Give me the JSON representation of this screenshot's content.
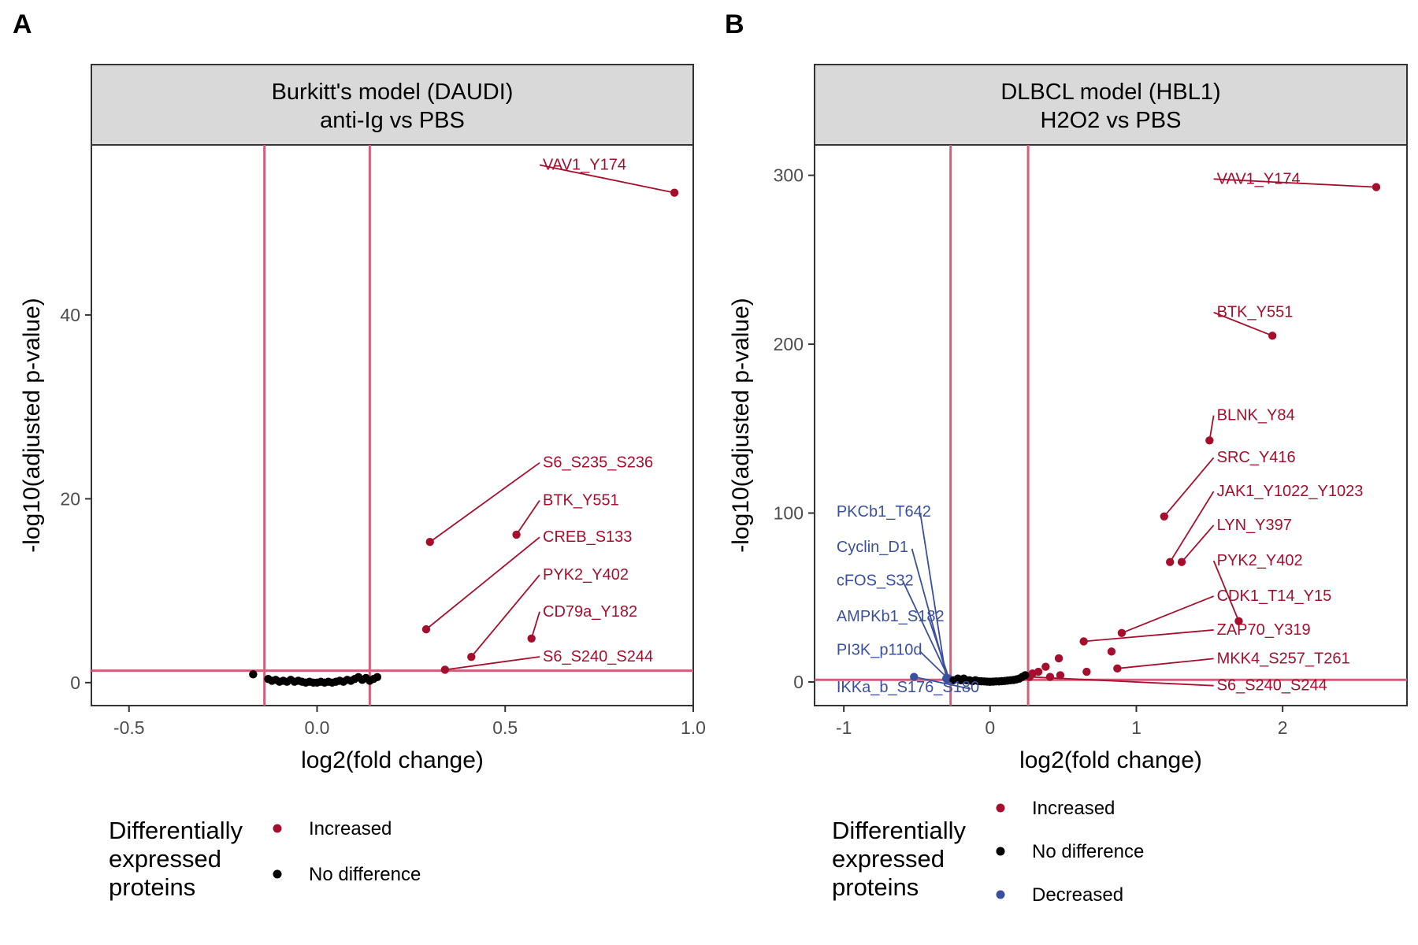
{
  "panel_labels": [
    "A",
    "B"
  ],
  "colors": {
    "increased": "#A50F2D",
    "no_difference": "#000000",
    "decreased": "#3A4F9E",
    "threshold": "#D0607A",
    "strip_fill": "#D9D9D9",
    "axis": "#333333"
  },
  "legend": {
    "title_lines": [
      "Differentially",
      "expressed",
      "proteins"
    ]
  },
  "chart_data": [
    {
      "type": "scatter",
      "strip_title_lines": [
        "Burkitt's model (DAUDI)",
        "anti-Ig vs PBS"
      ],
      "xlabel": "log2(fold change)",
      "ylabel": "-log10(adjusted p-value)",
      "xlim": [
        -0.6,
        1.0
      ],
      "ylim": [
        -2.5,
        58.5
      ],
      "x_ticks": [
        -0.5,
        0.0,
        0.5,
        1.0
      ],
      "x_tick_labels": [
        "-0.5",
        "0.0",
        "0.5",
        "1.0"
      ],
      "y_ticks": [
        0,
        20,
        40
      ],
      "y_tick_labels": [
        "0",
        "20",
        "40"
      ],
      "thresholds": {
        "vertical": [
          -0.14,
          0.14
        ],
        "horizontal": 1.3
      },
      "legend_items": [
        {
          "key": "increased",
          "label": "Increased"
        },
        {
          "key": "no_difference",
          "label": "No difference"
        }
      ],
      "points": [
        {
          "x": 0.95,
          "y": 53.3,
          "class": "increased",
          "label": "VAV1_Y174",
          "lx": 0.6,
          "ly": 55.8
        },
        {
          "x": 0.3,
          "y": 15.3,
          "class": "increased",
          "label": "S6_S235_S236",
          "lx": 0.6,
          "ly": 23.4
        },
        {
          "x": 0.53,
          "y": 16.1,
          "class": "increased",
          "label": "BTK_Y551",
          "lx": 0.6,
          "ly": 19.3
        },
        {
          "x": 0.29,
          "y": 5.8,
          "class": "increased",
          "label": "CREB_S133",
          "lx": 0.6,
          "ly": 15.3
        },
        {
          "x": 0.41,
          "y": 2.8,
          "class": "increased",
          "label": "PYK2_Y402",
          "lx": 0.6,
          "ly": 11.2
        },
        {
          "x": 0.57,
          "y": 4.8,
          "class": "increased",
          "label": "CD79a_Y182",
          "lx": 0.6,
          "ly": 7.2
        },
        {
          "x": 0.34,
          "y": 1.4,
          "class": "increased",
          "label": "S6_S240_S244",
          "lx": 0.6,
          "ly": 2.3
        },
        {
          "x": -0.17,
          "y": 0.9,
          "class": "no_difference"
        },
        {
          "x": -0.13,
          "y": 0.4,
          "class": "no_difference"
        },
        {
          "x": -0.12,
          "y": 0.2,
          "class": "no_difference"
        },
        {
          "x": -0.11,
          "y": 0.3,
          "class": "no_difference"
        },
        {
          "x": -0.1,
          "y": 0.1,
          "class": "no_difference"
        },
        {
          "x": -0.09,
          "y": 0.2,
          "class": "no_difference"
        },
        {
          "x": -0.08,
          "y": 0.1,
          "class": "no_difference"
        },
        {
          "x": -0.07,
          "y": 0.3,
          "class": "no_difference"
        },
        {
          "x": -0.06,
          "y": 0.1,
          "class": "no_difference"
        },
        {
          "x": -0.05,
          "y": 0.2,
          "class": "no_difference"
        },
        {
          "x": -0.04,
          "y": 0.1,
          "class": "no_difference"
        },
        {
          "x": -0.03,
          "y": 0.0,
          "class": "no_difference"
        },
        {
          "x": -0.02,
          "y": 0.1,
          "class": "no_difference"
        },
        {
          "x": -0.01,
          "y": 0.0,
          "class": "no_difference"
        },
        {
          "x": 0.0,
          "y": 0.0,
          "class": "no_difference"
        },
        {
          "x": 0.01,
          "y": 0.1,
          "class": "no_difference"
        },
        {
          "x": 0.02,
          "y": 0.0,
          "class": "no_difference"
        },
        {
          "x": 0.03,
          "y": 0.1,
          "class": "no_difference"
        },
        {
          "x": 0.04,
          "y": 0.0,
          "class": "no_difference"
        },
        {
          "x": 0.05,
          "y": 0.1,
          "class": "no_difference"
        },
        {
          "x": 0.06,
          "y": 0.2,
          "class": "no_difference"
        },
        {
          "x": 0.07,
          "y": 0.1,
          "class": "no_difference"
        },
        {
          "x": 0.08,
          "y": 0.3,
          "class": "no_difference"
        },
        {
          "x": 0.09,
          "y": 0.2,
          "class": "no_difference"
        },
        {
          "x": 0.1,
          "y": 0.4,
          "class": "no_difference"
        },
        {
          "x": 0.11,
          "y": 0.6,
          "class": "no_difference"
        },
        {
          "x": 0.12,
          "y": 0.3,
          "class": "no_difference"
        },
        {
          "x": 0.13,
          "y": 0.5,
          "class": "no_difference"
        },
        {
          "x": 0.14,
          "y": 0.2,
          "class": "no_difference"
        },
        {
          "x": 0.15,
          "y": 0.4,
          "class": "no_difference"
        },
        {
          "x": 0.16,
          "y": 0.6,
          "class": "no_difference"
        }
      ]
    },
    {
      "type": "scatter",
      "strip_title_lines": [
        "DLBCL model (HBL1)",
        "H2O2 vs PBS"
      ],
      "xlabel": "log2(fold change)",
      "ylabel": "-log10(adjusted p-value)",
      "xlim": [
        -1.2,
        2.85
      ],
      "ylim": [
        -14,
        318
      ],
      "x_ticks": [
        -1,
        0,
        1,
        2
      ],
      "x_tick_labels": [
        "-1",
        "0",
        "1",
        "2"
      ],
      "y_ticks": [
        0,
        100,
        200,
        300
      ],
      "y_tick_labels": [
        "0",
        "100",
        "200",
        "300"
      ],
      "thresholds": {
        "vertical": [
          -0.27,
          0.26
        ],
        "horizontal": 1.3
      },
      "legend_items": [
        {
          "key": "increased",
          "label": "Increased"
        },
        {
          "key": "no_difference",
          "label": "No difference"
        },
        {
          "key": "decreased",
          "label": "Decreased"
        }
      ],
      "points": [
        {
          "x": 2.64,
          "y": 293,
          "class": "increased",
          "label": "VAV1_Y174",
          "lx": 1.55,
          "ly": 295
        },
        {
          "x": 1.93,
          "y": 205,
          "class": "increased",
          "label": "BTK_Y551",
          "lx": 1.55,
          "ly": 216
        },
        {
          "x": 1.5,
          "y": 143,
          "class": "increased",
          "label": "BLNK_Y84",
          "lx": 1.55,
          "ly": 155
        },
        {
          "x": 1.19,
          "y": 98,
          "class": "increased",
          "label": "SRC_Y416",
          "lx": 1.55,
          "ly": 130
        },
        {
          "x": 1.23,
          "y": 71,
          "class": "increased",
          "label": "JAK1_Y1022_Y1023",
          "lx": 1.55,
          "ly": 110
        },
        {
          "x": 1.31,
          "y": 71,
          "class": "increased",
          "label": "LYN_Y397",
          "lx": 1.55,
          "ly": 90
        },
        {
          "x": 1.7,
          "y": 36,
          "class": "increased",
          "label": "PYK2_Y402",
          "lx": 1.55,
          "ly": 69
        },
        {
          "x": 0.9,
          "y": 29,
          "class": "increased",
          "label": "CDK1_T14_Y15",
          "lx": 1.55,
          "ly": 48
        },
        {
          "x": 0.64,
          "y": 24,
          "class": "increased",
          "label": "ZAP70_Y319",
          "lx": 1.55,
          "ly": 28
        },
        {
          "x": 0.87,
          "y": 8,
          "class": "increased",
          "label": "MKK4_S257_T261",
          "lx": 1.55,
          "ly": 11
        },
        {
          "x": 0.27,
          "y": 3,
          "class": "increased",
          "label": "S6_S240_S244",
          "lx": 1.55,
          "ly": -5
        },
        {
          "x": 0.83,
          "y": 18,
          "class": "increased"
        },
        {
          "x": 0.47,
          "y": 14,
          "class": "increased"
        },
        {
          "x": 0.38,
          "y": 9,
          "class": "increased"
        },
        {
          "x": 0.33,
          "y": 6,
          "class": "increased"
        },
        {
          "x": 0.29,
          "y": 5,
          "class": "increased"
        },
        {
          "x": 0.41,
          "y": 3,
          "class": "increased"
        },
        {
          "x": 0.48,
          "y": 4,
          "class": "increased"
        },
        {
          "x": 0.66,
          "y": 6,
          "class": "increased"
        },
        {
          "x": -0.52,
          "y": 3,
          "class": "decreased",
          "label": "IKKa_b_S176_S180",
          "lx": -1.05,
          "ly": -6
        },
        {
          "x": -0.3,
          "y": 2,
          "class": "decreased",
          "label": "PKCb1_T642",
          "lx": -1.05,
          "ly": 98
        },
        {
          "x": -0.29,
          "y": 1.5,
          "class": "decreased",
          "label": "Cyclin_D1",
          "lx": -1.05,
          "ly": 77
        },
        {
          "x": -0.28,
          "y": 1.6,
          "class": "decreased",
          "label": "cFOS_S32",
          "lx": -1.05,
          "ly": 57
        },
        {
          "x": -0.28,
          "y": 1.8,
          "class": "decreased",
          "label": "AMPKb1_S182",
          "lx": -1.05,
          "ly": 36
        },
        {
          "x": -0.29,
          "y": 2.2,
          "class": "decreased",
          "label": "PI3K_p110d",
          "lx": -1.05,
          "ly": 16
        },
        {
          "x": -0.25,
          "y": 1.0,
          "class": "no_difference"
        },
        {
          "x": -0.22,
          "y": 2.0,
          "class": "no_difference"
        },
        {
          "x": -0.2,
          "y": 1.0,
          "class": "no_difference"
        },
        {
          "x": -0.18,
          "y": 2.0,
          "class": "no_difference"
        },
        {
          "x": -0.16,
          "y": 1.0,
          "class": "no_difference"
        },
        {
          "x": -0.14,
          "y": 1.0,
          "class": "no_difference"
        },
        {
          "x": -0.12,
          "y": 0.5,
          "class": "no_difference"
        },
        {
          "x": -0.1,
          "y": 1.0,
          "class": "no_difference"
        },
        {
          "x": -0.08,
          "y": 0.5,
          "class": "no_difference"
        },
        {
          "x": -0.06,
          "y": 0.4,
          "class": "no_difference"
        },
        {
          "x": -0.04,
          "y": 0.3,
          "class": "no_difference"
        },
        {
          "x": -0.02,
          "y": 0.2,
          "class": "no_difference"
        },
        {
          "x": 0.0,
          "y": 0.1,
          "class": "no_difference"
        },
        {
          "x": 0.02,
          "y": 0.2,
          "class": "no_difference"
        },
        {
          "x": 0.04,
          "y": 0.3,
          "class": "no_difference"
        },
        {
          "x": 0.06,
          "y": 0.3,
          "class": "no_difference"
        },
        {
          "x": 0.08,
          "y": 0.5,
          "class": "no_difference"
        },
        {
          "x": 0.1,
          "y": 0.6,
          "class": "no_difference"
        },
        {
          "x": 0.12,
          "y": 0.8,
          "class": "no_difference"
        },
        {
          "x": 0.14,
          "y": 1.0,
          "class": "no_difference"
        },
        {
          "x": 0.16,
          "y": 1.2,
          "class": "no_difference"
        },
        {
          "x": 0.18,
          "y": 1.5,
          "class": "no_difference"
        },
        {
          "x": 0.2,
          "y": 2.0,
          "class": "no_difference"
        },
        {
          "x": 0.22,
          "y": 3.0,
          "class": "no_difference"
        },
        {
          "x": 0.24,
          "y": 4.0,
          "class": "no_difference"
        }
      ]
    }
  ]
}
